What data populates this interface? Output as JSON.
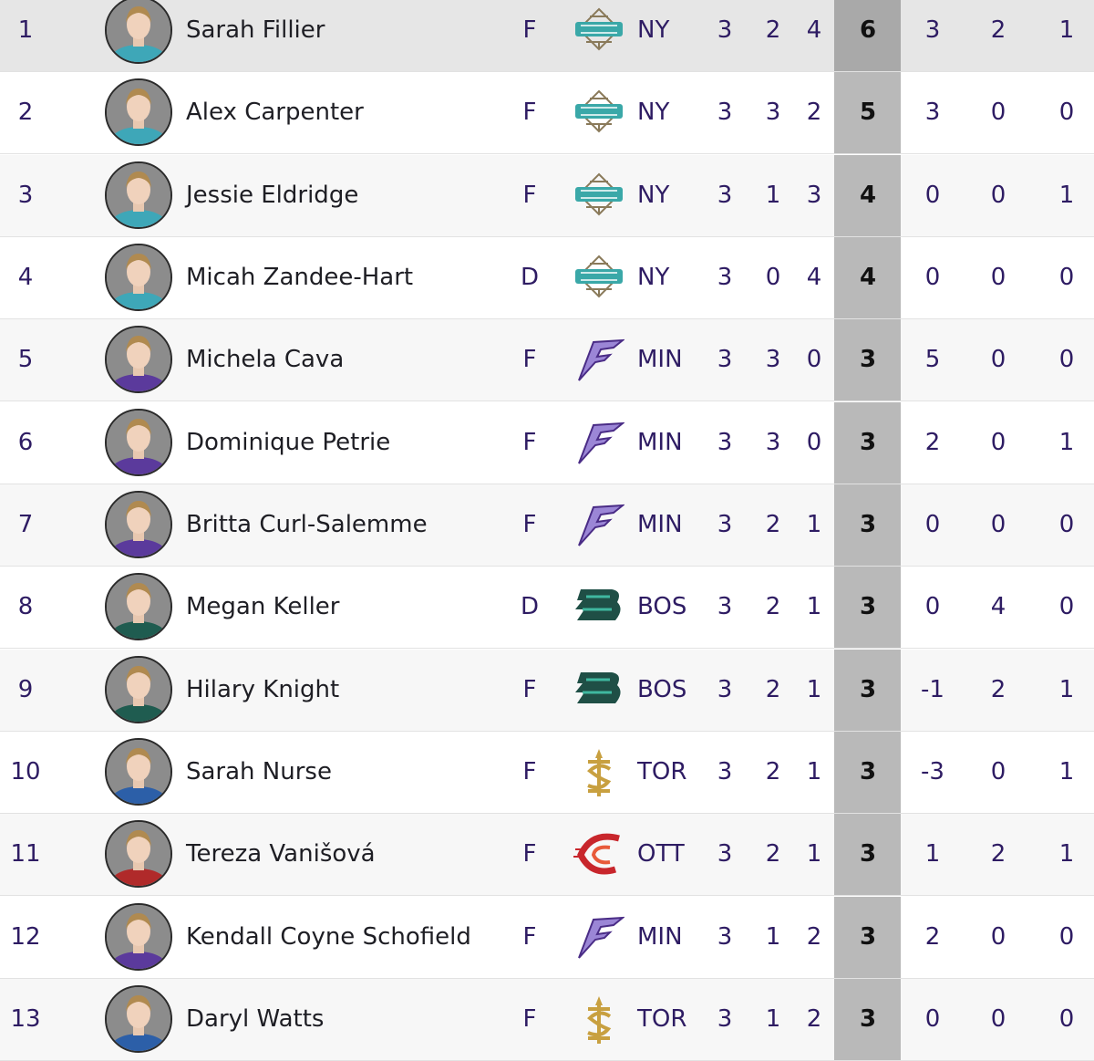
{
  "table": {
    "rows": [
      [
        1,
        "Sarah Fillier",
        "F",
        "NY",
        3,
        2,
        4,
        6,
        3,
        2,
        1
      ],
      [
        2,
        "Alex Carpenter",
        "F",
        "NY",
        3,
        3,
        2,
        5,
        3,
        0,
        0
      ],
      [
        3,
        "Jessie Eldridge",
        "F",
        "NY",
        3,
        1,
        3,
        4,
        0,
        0,
        1
      ],
      [
        4,
        "Micah Zandee-Hart",
        "D",
        "NY",
        3,
        0,
        4,
        4,
        0,
        0,
        0
      ],
      [
        5,
        "Michela Cava",
        "F",
        "MIN",
        3,
        3,
        0,
        3,
        5,
        0,
        0
      ],
      [
        6,
        "Dominique Petrie",
        "F",
        "MIN",
        3,
        3,
        0,
        3,
        2,
        0,
        1
      ],
      [
        7,
        "Britta Curl-Salemme",
        "F",
        "MIN",
        3,
        2,
        1,
        3,
        0,
        0,
        0
      ],
      [
        8,
        "Megan Keller",
        "D",
        "BOS",
        3,
        2,
        1,
        3,
        0,
        4,
        0
      ],
      [
        9,
        "Hilary Knight",
        "F",
        "BOS",
        3,
        2,
        1,
        3,
        -1,
        2,
        1
      ],
      [
        10,
        "Sarah Nurse",
        "F",
        "TOR",
        3,
        2,
        1,
        3,
        -3,
        0,
        1
      ],
      [
        11,
        "Tereza Vanišová",
        "F",
        "OTT",
        3,
        2,
        1,
        3,
        1,
        2,
        1
      ],
      [
        12,
        "Kendall Coyne Schofield",
        "F",
        "MIN",
        3,
        1,
        2,
        3,
        2,
        0,
        0
      ],
      [
        13,
        "Daryl Watts",
        "F",
        "TOR",
        3,
        1,
        2,
        3,
        0,
        0,
        0
      ]
    ]
  }
}
